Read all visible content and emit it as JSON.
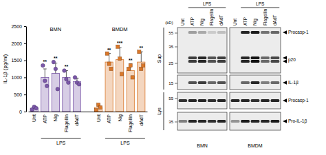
{
  "chart_data": {
    "type": "bar",
    "y_label": "IL-1β (pg/ml)",
    "categories": [
      "Unt",
      "ATP",
      "Nig",
      "Flagellin",
      "dAdT"
    ],
    "group_label": "LPS",
    "ylim": [
      0,
      2500
    ],
    "yticks": [
      0,
      500,
      1000,
      1500,
      2000,
      2500
    ],
    "series": [
      {
        "name": "BMN",
        "color": "#7b58a8",
        "marker": "circle",
        "values": [
          100,
          1000,
          1120,
          1000,
          880
        ],
        "errors": [
          40,
          250,
          300,
          200,
          100
        ],
        "points": [
          [
            60,
            140,
            100
          ],
          [
            1350,
            900,
            750
          ],
          [
            1450,
            1250,
            660
          ],
          [
            1200,
            950,
            850
          ],
          [
            1000,
            850,
            800
          ]
        ],
        "annotations": [
          null,
          "**",
          "**",
          "**",
          null
        ]
      },
      {
        "name": "BMDM",
        "color": "#d9772a",
        "marker": "square",
        "values": [
          120,
          1450,
          1520,
          1200,
          1450
        ],
        "errors": [
          80,
          250,
          350,
          200,
          300
        ],
        "points": [
          [
            40,
            200,
            120
          ],
          [
            1700,
            1400,
            1250
          ],
          [
            1900,
            1550,
            1100
          ],
          [
            1250,
            1350,
            1000
          ],
          [
            1750,
            1250,
            1350
          ]
        ],
        "annotations": [
          null,
          "**",
          "***",
          "**",
          "**"
        ]
      }
    ]
  },
  "blot": {
    "treatment": "LPS",
    "lanes": [
      "Unt",
      "ATP",
      "Nig",
      "Flagellin",
      "dAdT"
    ],
    "cells": [
      "BMN",
      "BMDM"
    ],
    "mw_header": "(kD)",
    "fractions": [
      {
        "label": "Sup",
        "panels": [
          {
            "markers": [
              55,
              35,
              25
            ],
            "bands": [
              {
                "label": "Procasp-1",
                "intensity": [
                  [
                    0,
                    0.35,
                    0.3,
                    0.15,
                    0.2
                  ],
                  [
                    0,
                    0.9,
                    0.95,
                    0.55,
                    0.6
                  ]
                ]
              },
              {
                "label": "p20",
                "intensity": [
                  [
                    0,
                    0.8,
                    0.9,
                    0.7,
                    0.8
                  ],
                  [
                    0,
                    0.9,
                    1,
                    0.6,
                    0.75
                  ]
                ]
              }
            ]
          },
          {
            "markers": [
              15
            ],
            "bands": [
              {
                "label": "IL-1β",
                "intensity": [
                  [
                    0,
                    0.7,
                    0.8,
                    0.6,
                    0.7
                  ],
                  [
                    0,
                    0.6,
                    0.9,
                    0.5,
                    0.6
                  ]
                ]
              }
            ]
          }
        ]
      },
      {
        "label": "Lys",
        "panels": [
          {
            "markers": [
              55
            ],
            "bands": [
              {
                "label": "Procasp-1",
                "intensity": [
                  [
                    0.85,
                    0.9,
                    0.9,
                    0.85,
                    0.9
                  ],
                  [
                    0.9,
                    0.9,
                    0.85,
                    0.9,
                    0.9
                  ]
                ]
              }
            ]
          },
          {
            "markers": [
              35
            ],
            "bands": [
              {
                "label": "Pro-IL-1β",
                "intensity": [
                  [
                    0.5,
                    0.9,
                    0.9,
                    0.85,
                    0.9
                  ],
                  [
                    0.4,
                    0.95,
                    0.9,
                    0.9,
                    0.95
                  ]
                ]
              }
            ]
          }
        ]
      }
    ]
  }
}
